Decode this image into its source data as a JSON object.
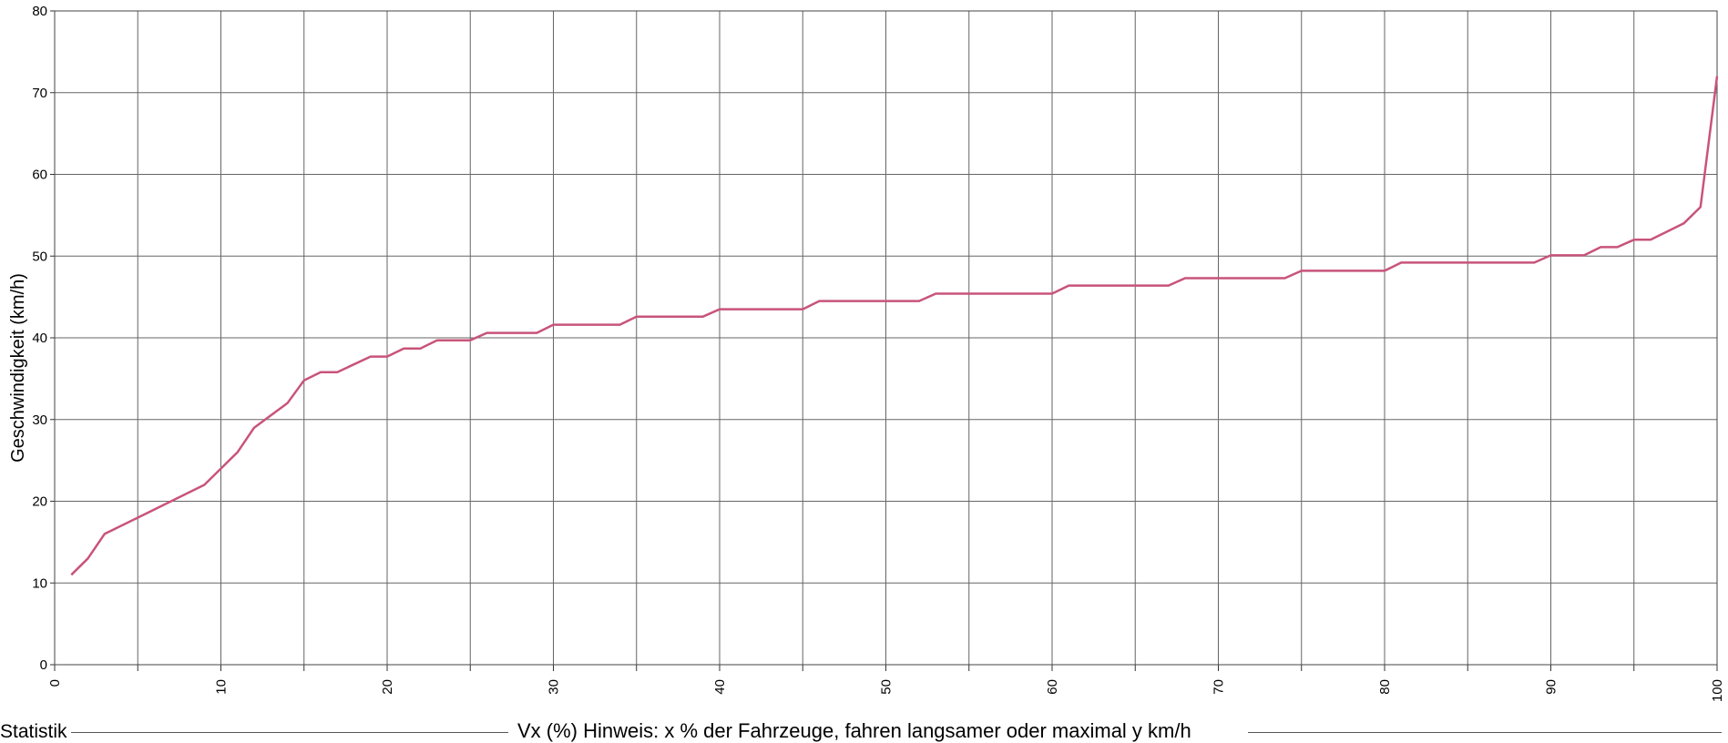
{
  "chart_data": {
    "type": "line",
    "xlabel": "Vx (%) Hinweis: x % der Fahrzeuge, fahren langsamer oder maximal y km/h",
    "ylabel": "Geschwindigkeit (km/h)",
    "xlim": [
      0,
      100
    ],
    "ylim": [
      0,
      80
    ],
    "x_ticks": [
      "0",
      "10",
      "20",
      "30",
      "40",
      "50",
      "60",
      "70",
      "80",
      "90",
      "100"
    ],
    "y_ticks": [
      "0",
      "10",
      "20",
      "30",
      "40",
      "50",
      "60",
      "70",
      "80"
    ],
    "grid": true,
    "x_grid_step": 5,
    "y_grid_step": 10,
    "line_color": "#c8547a",
    "series": [
      {
        "points": [
          [
            1,
            11
          ],
          [
            2,
            13
          ],
          [
            3,
            16
          ],
          [
            5,
            18
          ],
          [
            7,
            20
          ],
          [
            9,
            22
          ],
          [
            10,
            24
          ],
          [
            11,
            26
          ],
          [
            12,
            29
          ],
          [
            14,
            32
          ],
          [
            15,
            34.8
          ],
          [
            16,
            35.8
          ],
          [
            17,
            35.8
          ],
          [
            19,
            37.7
          ],
          [
            20,
            37.7
          ],
          [
            21,
            38.7
          ],
          [
            22,
            38.7
          ],
          [
            23,
            39.7
          ],
          [
            25,
            39.7
          ],
          [
            26,
            40.6
          ],
          [
            29,
            40.6
          ],
          [
            30,
            41.6
          ],
          [
            34,
            41.6
          ],
          [
            35,
            42.6
          ],
          [
            39,
            42.6
          ],
          [
            40,
            43.5
          ],
          [
            45,
            43.5
          ],
          [
            46,
            44.5
          ],
          [
            52,
            44.5
          ],
          [
            53,
            45.4
          ],
          [
            60,
            45.4
          ],
          [
            61,
            46.4
          ],
          [
            67,
            46.4
          ],
          [
            68,
            47.3
          ],
          [
            74,
            47.3
          ],
          [
            75,
            48.2
          ],
          [
            80,
            48.2
          ],
          [
            81,
            49.2
          ],
          [
            89,
            49.2
          ],
          [
            90,
            50.1
          ],
          [
            92,
            50.1
          ],
          [
            93,
            51.1
          ],
          [
            94,
            51.1
          ],
          [
            95,
            52
          ],
          [
            96,
            52
          ],
          [
            98,
            54
          ],
          [
            99,
            56
          ],
          [
            100,
            72
          ]
        ]
      }
    ]
  },
  "footer": {
    "section_label": "Statistik"
  }
}
